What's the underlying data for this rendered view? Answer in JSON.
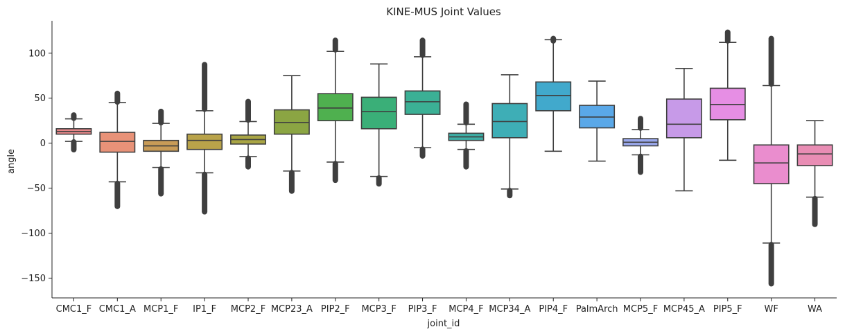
{
  "chart_data": {
    "type": "box",
    "title": "KINE-MUS Joint Values",
    "xlabel": "joint_id",
    "ylabel": "angle",
    "ylim": [
      -172,
      136
    ],
    "yticks": [
      100,
      50,
      0,
      -50,
      -100,
      -150
    ],
    "ytick_labels": [
      "100",
      "50",
      "0",
      "−50",
      "−100",
      "−150"
    ],
    "grid": false,
    "categories": [
      "CMC1_F",
      "CMC1_A",
      "MCP1_F",
      "IP1_F",
      "MCP2_F",
      "MCP23_A",
      "PIP2_F",
      "MCP3_F",
      "PIP3_F",
      "MCP4_F",
      "MCP34_A",
      "PIP4_F",
      "PalmArch",
      "MCP5_F",
      "MCP45_A",
      "PIP5_F",
      "WF",
      "WA"
    ],
    "colors": [
      "#e8888a",
      "#e89278",
      "#c89b57",
      "#b9a34a",
      "#a9a544",
      "#8ba543",
      "#4fb04f",
      "#3aaf78",
      "#3bb095",
      "#3dafa6",
      "#3eaeb6",
      "#41a9cc",
      "#5aa8e8",
      "#9aa8ec",
      "#c79ae8",
      "#e68ee4",
      "#ea8dce",
      "#e98db4"
    ],
    "boxes": [
      {
        "name": "CMC1_F",
        "whislo": 2,
        "q1": 10,
        "median": 13,
        "q3": 16,
        "whishi": 27,
        "fliers_low": [
          -8,
          2
        ],
        "fliers_high": [
          27,
          32
        ]
      },
      {
        "name": "CMC1_A",
        "whislo": -43,
        "q1": -10,
        "median": 2,
        "q3": 12,
        "whishi": 45,
        "fliers_low": [
          -71,
          -44
        ],
        "fliers_high": [
          45,
          56
        ]
      },
      {
        "name": "MCP1_F",
        "whislo": -27,
        "q1": -9,
        "median": -3,
        "q3": 3,
        "whishi": 22,
        "fliers_low": [
          -57,
          -28
        ],
        "fliers_high": [
          22,
          36
        ]
      },
      {
        "name": "IP1_F",
        "whislo": -33,
        "q1": -7,
        "median": 3,
        "q3": 10,
        "whishi": 36,
        "fliers_low": [
          -77,
          -34
        ],
        "fliers_high": [
          37,
          88
        ]
      },
      {
        "name": "MCP2_F",
        "whislo": -15,
        "q1": -1,
        "median": 4,
        "q3": 9,
        "whishi": 24,
        "fliers_low": [
          -27,
          -16
        ],
        "fliers_high": [
          25,
          47
        ]
      },
      {
        "name": "MCP23_A",
        "whislo": -31,
        "q1": 10,
        "median": 23,
        "q3": 37,
        "whishi": 75,
        "fliers_low": [
          -54,
          -32
        ],
        "fliers_high": []
      },
      {
        "name": "PIP2_F",
        "whislo": -21,
        "q1": 25,
        "median": 39,
        "q3": 55,
        "whishi": 102,
        "fliers_low": [
          -42,
          -22
        ],
        "fliers_high": [
          103,
          115
        ]
      },
      {
        "name": "MCP3_F",
        "whislo": -37,
        "q1": 16,
        "median": 35,
        "q3": 51,
        "whishi": 88,
        "fliers_low": [
          -46,
          -38
        ],
        "fliers_high": []
      },
      {
        "name": "PIP3_F",
        "whislo": -5,
        "q1": 32,
        "median": 46,
        "q3": 58,
        "whishi": 96,
        "fliers_low": [
          -15,
          -6
        ],
        "fliers_high": [
          97,
          115
        ]
      },
      {
        "name": "MCP4_F",
        "whislo": -7,
        "q1": 3,
        "median": 7,
        "q3": 11,
        "whishi": 21,
        "fliers_low": [
          -27,
          -8
        ],
        "fliers_high": [
          22,
          44
        ]
      },
      {
        "name": "MCP34_A",
        "whislo": -51,
        "q1": 6,
        "median": 24,
        "q3": 44,
        "whishi": 76,
        "fliers_low": [
          -59,
          -52
        ],
        "fliers_high": []
      },
      {
        "name": "PIP4_F",
        "whislo": -9,
        "q1": 36,
        "median": 53,
        "q3": 68,
        "whishi": 115,
        "fliers_low": [],
        "fliers_high": [
          113,
          117
        ]
      },
      {
        "name": "PalmArch",
        "whislo": -20,
        "q1": 17,
        "median": 29,
        "q3": 42,
        "whishi": 69,
        "fliers_low": [],
        "fliers_high": []
      },
      {
        "name": "MCP5_F",
        "whislo": -13,
        "q1": -3,
        "median": 1,
        "q3": 5,
        "whishi": 15,
        "fliers_low": [
          -33,
          -14
        ],
        "fliers_high": [
          16,
          28
        ]
      },
      {
        "name": "MCP45_A",
        "whislo": -53,
        "q1": 6,
        "median": 21,
        "q3": 49,
        "whishi": 83,
        "fliers_low": [],
        "fliers_high": []
      },
      {
        "name": "PIP5_F",
        "whislo": -19,
        "q1": 26,
        "median": 43,
        "q3": 61,
        "whishi": 112,
        "fliers_low": [],
        "fliers_high": [
          113,
          124
        ]
      },
      {
        "name": "WF",
        "whislo": -111,
        "q1": -45,
        "median": -22,
        "q3": -2,
        "whishi": 64,
        "fliers_low": [
          -157,
          -112
        ],
        "fliers_high": [
          65,
          117
        ]
      },
      {
        "name": "WA",
        "whislo": -60,
        "q1": -25,
        "median": -12,
        "q3": -2,
        "whishi": 25,
        "fliers_low": [
          -91,
          -61
        ],
        "fliers_high": []
      }
    ]
  }
}
